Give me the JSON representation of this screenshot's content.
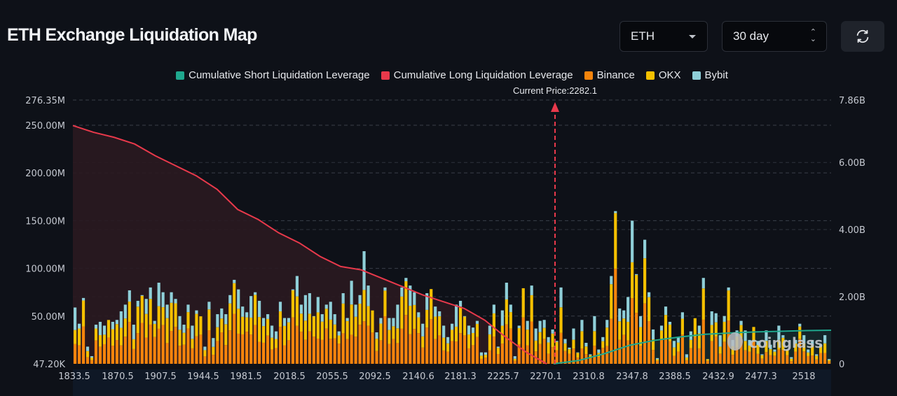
{
  "header": {
    "title": "ETH Exchange Liquidation Map",
    "symbol_select": "ETH",
    "range_select": "30 day",
    "refresh_icon": "refresh-icon"
  },
  "colors": {
    "short": "#1fa88e",
    "long": "#e8394b",
    "binance": "#f5840c",
    "okx": "#f5c000",
    "bybit": "#8fcfd8"
  },
  "chart_data": {
    "type": "bar",
    "title": "ETH Exchange Liquidation Map",
    "legend": [
      "Cumulative Short Liquidation Leverage",
      "Cumulative Long Liquidation Leverage",
      "Binance",
      "OKX",
      "Bybit"
    ],
    "legend_position": "top",
    "current_price_label": "Current Price:2282.1",
    "current_price": 2282.1,
    "left_axis": {
      "ticks": [
        "47.20K",
        "50.00M",
        "100.00M",
        "150.00M",
        "200.00M",
        "250.00M",
        "276.35M"
      ],
      "range": [
        0,
        276.35
      ],
      "unit": "M"
    },
    "right_axis": {
      "ticks": [
        "0",
        "2.00B",
        "4.00B",
        "6.00B",
        "7.86B"
      ],
      "range": [
        0,
        7.86
      ],
      "unit": "B"
    },
    "x_ticks": [
      "1833.5",
      "1870.5",
      "1907.5",
      "1944.5",
      "1981.5",
      "2018.5",
      "2055.5",
      "2092.5",
      "2140.6",
      "2181.3",
      "2225.7",
      "2270.1",
      "2310.8",
      "2347.8",
      "2388.5",
      "2432.9",
      "2477.3",
      "2518"
    ],
    "x_range": [
      1833.5,
      2550
    ],
    "watermark": "coinglass",
    "bars_total_M": [
      59,
      42,
      69,
      18,
      8,
      41,
      44,
      40,
      44,
      44,
      46,
      55,
      62,
      77,
      41,
      66,
      72,
      68,
      80,
      45,
      85,
      75,
      62,
      75,
      68,
      50,
      41,
      62,
      40,
      56,
      49,
      18,
      65,
      27,
      52,
      58,
      52,
      72,
      88,
      78,
      60,
      54,
      71,
      75,
      66,
      48,
      52,
      40,
      34,
      65,
      48,
      48,
      78,
      92,
      62,
      72,
      74,
      50,
      70,
      52,
      62,
      65,
      52,
      34,
      74,
      48,
      87,
      62,
      72,
      118,
      82,
      55,
      33,
      48,
      80,
      48,
      48,
      62,
      80,
      90,
      82,
      75,
      54,
      42,
      74,
      75,
      60,
      55,
      40,
      28,
      42,
      62,
      66,
      50,
      40,
      38,
      45,
      12,
      12,
      40,
      62,
      18,
      56,
      85,
      62,
      8,
      40,
      78,
      45,
      82,
      37,
      45,
      46,
      28,
      36,
      24,
      80,
      26,
      17,
      37,
      12,
      46,
      22,
      10,
      50,
      15,
      28,
      46,
      92,
      160,
      58,
      56,
      70,
      150,
      94,
      50,
      130,
      75,
      36,
      6,
      40,
      60,
      44,
      24,
      28,
      54,
      10,
      34,
      47,
      40,
      90,
      5,
      55,
      53,
      30,
      50,
      80,
      25,
      35,
      45,
      35,
      25,
      37,
      24,
      10,
      35,
      20,
      15,
      40,
      30,
      15,
      7,
      25,
      42,
      30,
      15,
      25,
      10,
      20,
      30,
      5
    ],
    "long_cumulative_B": [
      7.1,
      6.9,
      6.75,
      6.55,
      6.2,
      5.9,
      5.6,
      5.2,
      4.6,
      4.3,
      3.9,
      3.6,
      3.2,
      2.9,
      2.8,
      2.55,
      2.3,
      2.05,
      1.85,
      1.65,
      1.3,
      0.8,
      0.35,
      0
    ],
    "short_cumulative_B": [
      0,
      0.1,
      0.3,
      0.55,
      0.7,
      0.8,
      0.88,
      0.92,
      0.95,
      0.97,
      0.99,
      1.0
    ]
  }
}
